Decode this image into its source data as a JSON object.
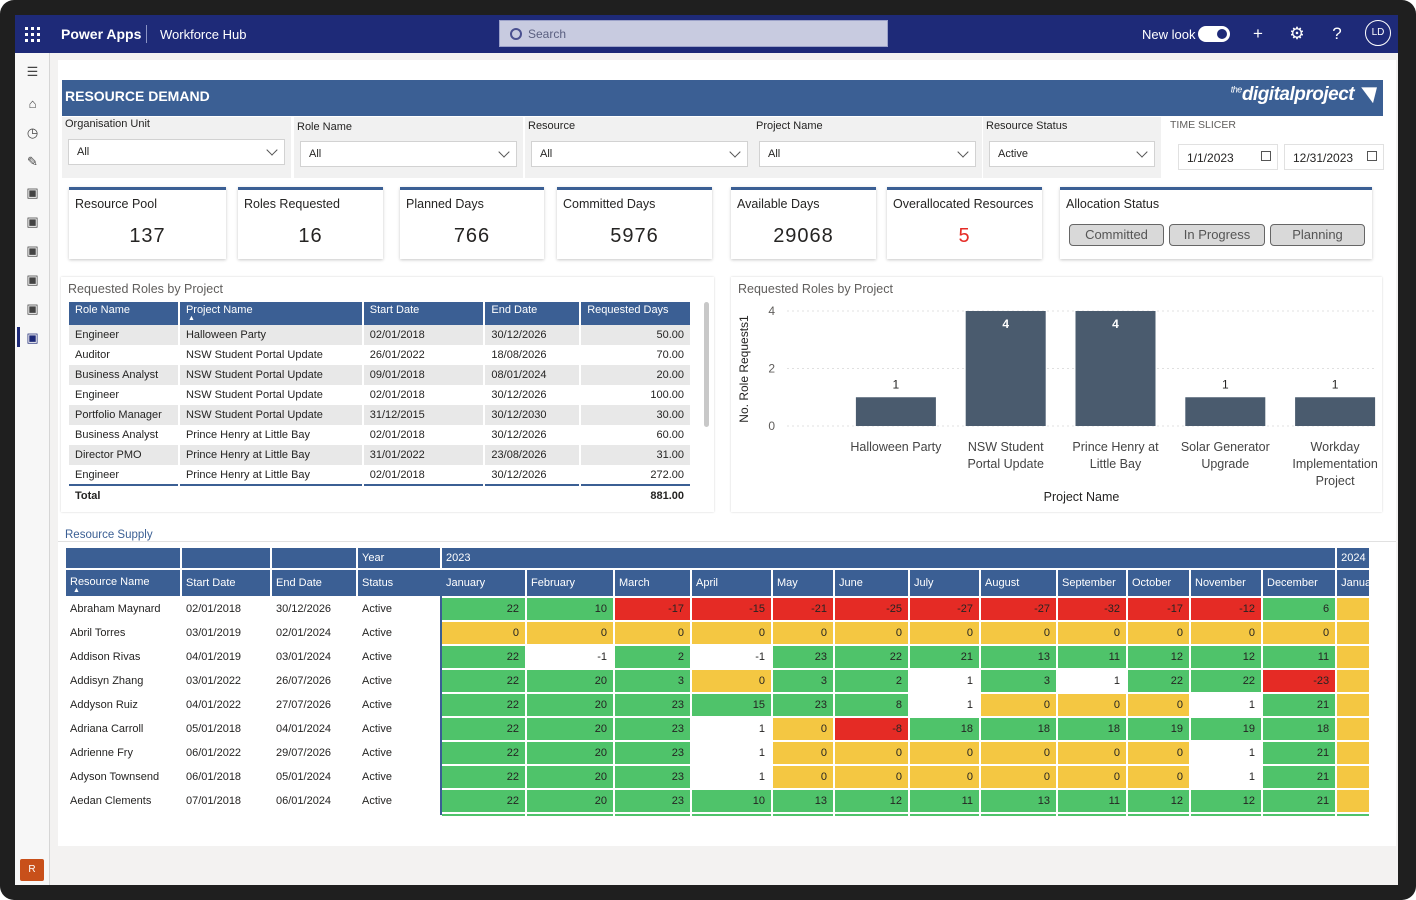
{
  "topbar": {
    "app_name": "Power Apps",
    "environment": "Workforce Hub",
    "search_placeholder": "Search",
    "new_look_label": "New look",
    "avatar_initials": "LD"
  },
  "nav": {
    "bottom_badge": "R"
  },
  "report": {
    "title": "RESOURCE DEMAND",
    "logo_prefix": "the",
    "logo_text": "digitalproject"
  },
  "slicers": [
    {
      "label": "Organisation Unit",
      "value": "All"
    },
    {
      "label": "Role Name",
      "value": "All"
    },
    {
      "label": "Resource",
      "value": "All"
    },
    {
      "label": "Project Name",
      "value": "All"
    },
    {
      "label": "Resource Status",
      "value": "Active"
    }
  ],
  "time_slicer": {
    "label": "TIME SLICER",
    "start": "1/1/2023",
    "end": "12/31/2023"
  },
  "kpis": [
    {
      "label": "Resource Pool",
      "value": "137"
    },
    {
      "label": "Roles Requested",
      "value": "16"
    },
    {
      "label": "Planned Days",
      "value": "766"
    },
    {
      "label": "Committed Days",
      "value": "5976"
    },
    {
      "label": "Available Days",
      "value": "29068"
    },
    {
      "label": "Overallocated Resources",
      "value": "5",
      "color": "#e52b25"
    }
  ],
  "allocation": {
    "label": "Allocation Status",
    "buttons": [
      "Committed",
      "In Progress",
      "Planning"
    ]
  },
  "roles_table": {
    "title": "Requested Roles by Project",
    "columns": [
      "Role Name",
      "Project Name",
      "Start Date",
      "End Date",
      "Requested Days"
    ],
    "rows": [
      [
        "Engineer",
        "Halloween Party",
        "02/01/2018",
        "30/12/2026",
        "50.00"
      ],
      [
        "Auditor",
        "NSW Student Portal Update",
        "26/01/2022",
        "18/08/2026",
        "70.00"
      ],
      [
        "Business Analyst",
        "NSW Student Portal Update",
        "09/01/2018",
        "08/01/2024",
        "20.00"
      ],
      [
        "Engineer",
        "NSW Student Portal Update",
        "02/01/2018",
        "30/12/2026",
        "100.00"
      ],
      [
        "Portfolio Manager",
        "NSW Student Portal Update",
        "31/12/2015",
        "30/12/2030",
        "30.00"
      ],
      [
        "Business Analyst",
        "Prince Henry at Little Bay",
        "02/01/2018",
        "30/12/2026",
        "60.00"
      ],
      [
        "Director PMO",
        "Prince Henry at Little Bay",
        "31/01/2022",
        "23/08/2026",
        "31.00"
      ],
      [
        "Engineer",
        "Prince Henry at Little Bay",
        "02/01/2018",
        "30/12/2026",
        "272.00"
      ]
    ],
    "total_label": "Total",
    "total_value": "881.00"
  },
  "chart_data": {
    "type": "bar",
    "title": "Requested Roles by Project",
    "xlabel": "Project Name",
    "ylabel": "No. Role Requests1",
    "categories": [
      [
        "Halloween Party"
      ],
      [
        "NSW Student",
        "Portal Update"
      ],
      [
        "Prince Henry at",
        "Little Bay"
      ],
      [
        "Solar Generator",
        "Upgrade"
      ],
      [
        "Workday",
        "Implementation",
        "Project"
      ]
    ],
    "values": [
      1,
      4,
      4,
      1,
      1
    ],
    "ylim": [
      0,
      4
    ],
    "yticks": [
      0,
      2,
      4
    ],
    "bar_color": "#4a5b6e"
  },
  "supply": {
    "title": "Resource Supply",
    "year_header": "Year",
    "years": [
      "2023",
      "2024"
    ],
    "columns": [
      "Resource Name",
      "Start Date",
      "End Date",
      "Status"
    ],
    "months": [
      "January",
      "February",
      "March",
      "April",
      "May",
      "June",
      "July",
      "August",
      "September",
      "October",
      "November",
      "December",
      "Janua"
    ],
    "rows": [
      {
        "name": "Abraham Maynard",
        "start": "02/01/2018",
        "end": "30/12/2026",
        "status": "Active",
        "vals": [
          "22",
          "10",
          "-17",
          "-15",
          "-21",
          "-25",
          "-27",
          "-27",
          "-32",
          "-17",
          "-12",
          "6",
          ""
        ]
      },
      {
        "name": "Abril Torres",
        "start": "03/01/2019",
        "end": "02/01/2024",
        "status": "Active",
        "vals": [
          "0",
          "0",
          "0",
          "0",
          "0",
          "0",
          "0",
          "0",
          "0",
          "0",
          "0",
          "0",
          ""
        ]
      },
      {
        "name": "Addison Rivas",
        "start": "04/01/2019",
        "end": "03/01/2024",
        "status": "Active",
        "vals": [
          "22",
          "-1",
          "2",
          "-1",
          "23",
          "22",
          "21",
          "13",
          "11",
          "12",
          "12",
          "11",
          ""
        ]
      },
      {
        "name": "Addisyn Zhang",
        "start": "03/01/2022",
        "end": "26/07/2026",
        "status": "Active",
        "vals": [
          "22",
          "20",
          "3",
          "0",
          "3",
          "2",
          "1",
          "3",
          "1",
          "22",
          "22",
          "-23",
          ""
        ]
      },
      {
        "name": "Addyson Ruiz",
        "start": "04/01/2022",
        "end": "27/07/2026",
        "status": "Active",
        "vals": [
          "22",
          "20",
          "23",
          "15",
          "23",
          "8",
          "1",
          "0",
          "0",
          "0",
          "1",
          "21",
          ""
        ]
      },
      {
        "name": "Adriana Carroll",
        "start": "05/01/2018",
        "end": "04/01/2024",
        "status": "Active",
        "vals": [
          "22",
          "20",
          "23",
          "1",
          "0",
          "-8",
          "18",
          "18",
          "18",
          "19",
          "19",
          "18",
          ""
        ]
      },
      {
        "name": "Adrienne Fry",
        "start": "06/01/2022",
        "end": "29/07/2026",
        "status": "Active",
        "vals": [
          "22",
          "20",
          "23",
          "1",
          "0",
          "0",
          "0",
          "0",
          "0",
          "0",
          "1",
          "21",
          ""
        ]
      },
      {
        "name": "Adyson Townsend",
        "start": "06/01/2018",
        "end": "05/01/2024",
        "status": "Active",
        "vals": [
          "22",
          "20",
          "23",
          "1",
          "0",
          "0",
          "0",
          "0",
          "0",
          "0",
          "1",
          "21",
          ""
        ]
      },
      {
        "name": "Aedan Clements",
        "start": "07/01/2018",
        "end": "06/01/2024",
        "status": "Active",
        "vals": [
          "22",
          "20",
          "23",
          "10",
          "13",
          "12",
          "11",
          "13",
          "11",
          "12",
          "12",
          "21",
          ""
        ]
      }
    ]
  }
}
